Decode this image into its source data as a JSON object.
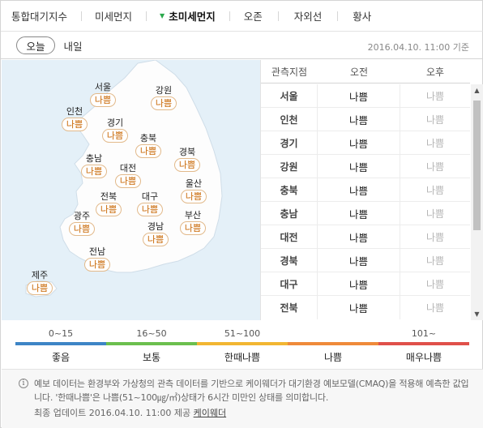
{
  "tabs": [
    {
      "label": "통합대기지수"
    },
    {
      "label": "미세먼지"
    },
    {
      "label": "초미세먼지",
      "active": true
    },
    {
      "label": "오존"
    },
    {
      "label": "자외선"
    },
    {
      "label": "황사"
    }
  ],
  "days": {
    "today": "오늘",
    "tomorrow": "내일"
  },
  "updated": "2016.04.10. 11:00 기준",
  "map_regions": [
    {
      "name": "서울",
      "status": "나쁨"
    },
    {
      "name": "강원",
      "status": "나쁨"
    },
    {
      "name": "인천",
      "status": "나쁨"
    },
    {
      "name": "경기",
      "status": "나쁨"
    },
    {
      "name": "충북",
      "status": "나쁨"
    },
    {
      "name": "충남",
      "status": "나쁨"
    },
    {
      "name": "대전",
      "status": "나쁨"
    },
    {
      "name": "경북",
      "status": "나쁨"
    },
    {
      "name": "울산",
      "status": "나쁨"
    },
    {
      "name": "전북",
      "status": "나쁨"
    },
    {
      "name": "대구",
      "status": "나쁨"
    },
    {
      "name": "광주",
      "status": "나쁨"
    },
    {
      "name": "경남",
      "status": "나쁨"
    },
    {
      "name": "부산",
      "status": "나쁨"
    },
    {
      "name": "전남",
      "status": "나쁨"
    },
    {
      "name": "제주",
      "status": "나쁨"
    }
  ],
  "table": {
    "headers": [
      "관측지점",
      "오전",
      "오후"
    ],
    "rows": [
      [
        "서울",
        "나쁨",
        "나쁨"
      ],
      [
        "인천",
        "나쁨",
        "나쁨"
      ],
      [
        "경기",
        "나쁨",
        "나쁨"
      ],
      [
        "강원",
        "나쁨",
        "나쁨"
      ],
      [
        "충북",
        "나쁨",
        "나쁨"
      ],
      [
        "충남",
        "나쁨",
        "나쁨"
      ],
      [
        "대전",
        "나쁨",
        "나쁨"
      ],
      [
        "경북",
        "나쁨",
        "나쁨"
      ],
      [
        "대구",
        "나쁨",
        "나쁨"
      ],
      [
        "전북",
        "나쁨",
        "나쁨"
      ]
    ]
  },
  "legend": [
    {
      "range": "0~15",
      "label": "좋음",
      "color": "#3d85c6"
    },
    {
      "range": "16~50",
      "label": "보통",
      "color": "#6bbf4e"
    },
    {
      "range": "51~100",
      "label": "한때나쁨",
      "color": "#f2b632"
    },
    {
      "range": "",
      "label": "나쁨",
      "color": "#ef8a3a"
    },
    {
      "range": "101~",
      "label": "매우나쁨",
      "color": "#e0504a"
    }
  ],
  "notes": {
    "text": "예보 데이터는 환경부와 가상청의 관측 데이터를 기반으로 케이웨더가 대기환경 예보모델(CMAQ)을 적용해 예측한 값입니다. '한때나쁨'은 나쁨(51~100㎍/㎥)상태가 6시간 미만인 상태를 의미합니다.",
    "foot_prefix": "최종 업데이트 2016.04.10. 11:00 제공",
    "provider": "케이웨더"
  },
  "colors": {
    "badge_text": "#c86500",
    "map_bg": "#e4f0f8",
    "land": "#fdfdfd"
  }
}
